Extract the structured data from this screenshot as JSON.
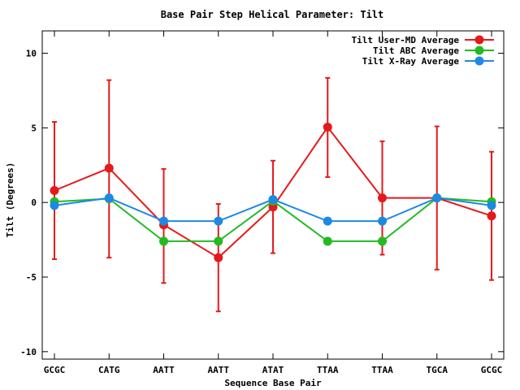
{
  "chart_data": {
    "type": "line",
    "title": "Base Pair Step Helical Parameter: Tilt",
    "xlabel": "Sequence Base Pair",
    "ylabel": "Tilt (Degrees)",
    "categories": [
      "GCGC",
      "CATG",
      "AATT",
      "AATT",
      "ATAT",
      "TTAA",
      "TTAA",
      "TGCA",
      "GCGC"
    ],
    "ylim": [
      -10.5,
      11.5
    ],
    "yticks": [
      -10,
      -5,
      0,
      5,
      10
    ],
    "grid": false,
    "legend_position": "top-right",
    "series": [
      {
        "name": "Tilt User-MD Average",
        "color": "#e41a1c",
        "values": [
          0.8,
          2.3,
          -1.5,
          -3.7,
          -0.3,
          5.05,
          0.3,
          0.3,
          -0.9
        ],
        "error_low": [
          -3.8,
          -3.7,
          -5.4,
          -7.3,
          -3.4,
          1.7,
          -3.5,
          -4.5,
          -5.2
        ],
        "error_high": [
          5.4,
          8.2,
          2.25,
          -0.1,
          2.8,
          8.35,
          4.1,
          5.1,
          3.4
        ]
      },
      {
        "name": "Tilt ABC Average",
        "color": "#22bb22",
        "values": [
          0.05,
          0.25,
          -2.6,
          -2.6,
          0.1,
          -2.6,
          -2.6,
          0.3,
          0.05
        ]
      },
      {
        "name": "Tilt X-Ray Average",
        "color": "#1e88e5",
        "values": [
          -0.2,
          0.3,
          -1.25,
          -1.25,
          0.2,
          -1.25,
          -1.25,
          0.3,
          -0.2
        ]
      }
    ]
  }
}
